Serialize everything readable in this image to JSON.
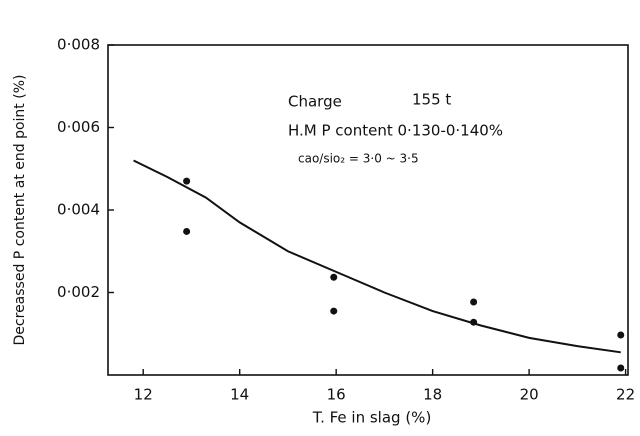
{
  "chart_data": {
    "type": "scatter",
    "x_label": "T. Fe in slag  (%)",
    "y_label": "Decreassed P content at end point (%)",
    "annotations": [
      "Charge",
      "155 t",
      "H.M P content 0·130-0·140%",
      "cao/sio₂ = 3·0 ~ 3·5"
    ],
    "xlim": [
      11.27,
      22.05
    ],
    "ylim": [
      0,
      0.008
    ],
    "xticks": [
      12,
      14,
      16,
      18,
      20,
      22
    ],
    "yticks": [
      {
        "value": 0.002,
        "label": "0·002"
      },
      {
        "value": 0.004,
        "label": "0·004"
      },
      {
        "value": 0.006,
        "label": "0·006"
      },
      {
        "value": 0.008,
        "label": "0·008"
      }
    ],
    "color": "#111111",
    "points": {
      "x": [
        12.9,
        12.9,
        15.95,
        15.95,
        18.85,
        18.85,
        21.9,
        21.9
      ],
      "y": [
        0.0047,
        0.00348,
        0.00237,
        0.00155,
        0.00177,
        0.00128,
        0.00097,
        0.00017
      ]
    },
    "curve": {
      "x": [
        11.8,
        12.5,
        13.3,
        14,
        15,
        16,
        17,
        18,
        19,
        20,
        21,
        21.9
      ],
      "y": [
        0.0052,
        0.0048,
        0.0043,
        0.0037,
        0.003,
        0.0025,
        0.002,
        0.00155,
        0.0012,
        0.0009,
        0.0007,
        0.00055
      ]
    }
  }
}
